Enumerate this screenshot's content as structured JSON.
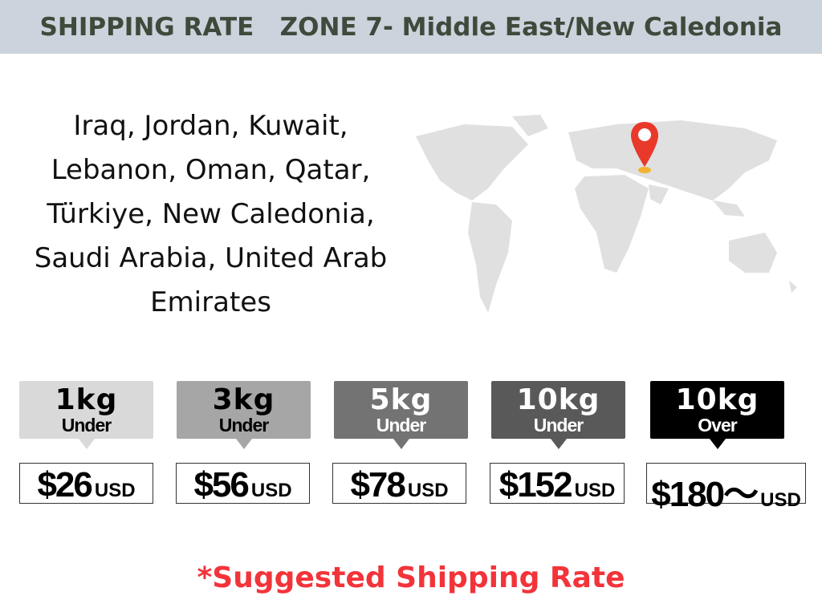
{
  "header": {
    "title": "SHIPPING RATE   ZONE 7- Middle East/New Caledonia"
  },
  "countries": {
    "text": "Iraq, Jordan, Kuwait, Lebanon, Oman, Qatar, Türkiye, New Caledonia, Saudi Arabia, United Arab Emirates"
  },
  "map": {
    "icon": "world-map",
    "pin_icon": "location-pin",
    "pin_color": "#e8392b",
    "land_color": "#e0e0e0"
  },
  "rates": [
    {
      "weight": "1kg",
      "qualifier": "Under",
      "price": "$26",
      "currency": "USD",
      "bg": "#d9d9d9",
      "fg": "#000000"
    },
    {
      "weight": "3kg",
      "qualifier": "Under",
      "price": "$56",
      "currency": "USD",
      "bg": "#a6a6a6",
      "fg": "#000000"
    },
    {
      "weight": "5kg",
      "qualifier": "Under",
      "price": "$78",
      "currency": "USD",
      "bg": "#737373",
      "fg": "#ffffff"
    },
    {
      "weight": "10kg",
      "qualifier": "Under",
      "price": "$152",
      "currency": "USD",
      "bg": "#595959",
      "fg": "#ffffff"
    },
    {
      "weight": "10kg",
      "qualifier": "Over",
      "price": "$180〜",
      "currency": "USD",
      "bg": "#000000",
      "fg": "#ffffff"
    }
  ],
  "note": {
    "text": "*Suggested Shipping Rate",
    "color": "#f2343a"
  }
}
